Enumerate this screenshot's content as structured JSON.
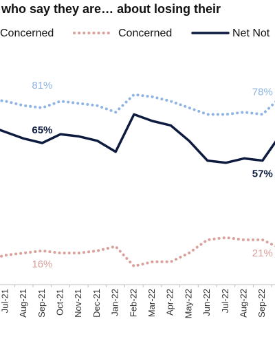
{
  "chart_data": {
    "type": "line",
    "title": "who say they are… about losing their",
    "categories": [
      null,
      "Jul-21",
      "Aug-21",
      "Sep-21",
      "Oct-21",
      "Nov-21",
      "Dec-21",
      "Jan-22",
      "Feb-22",
      "Mar-22",
      "Apr-22",
      "May-22",
      "Jun-22",
      "Jul-22",
      "Aug-22",
      "Sep-22",
      null
    ],
    "series": [
      {
        "name": "Concerned",
        "color": "#8fb4e3",
        "style": "dotted",
        "values": [
          85,
          84,
          82,
          81,
          84,
          83,
          82,
          79,
          87,
          86,
          84,
          81,
          78,
          78,
          79,
          78,
          86
        ],
        "value_labels": [
          null,
          null,
          null,
          "81%",
          null,
          null,
          null,
          null,
          null,
          null,
          null,
          null,
          null,
          null,
          null,
          "78%",
          null
        ]
      },
      {
        "name": "Concerned",
        "color": "#d9a09c",
        "style": "dotted",
        "values": [
          12,
          14,
          15,
          16,
          15,
          15,
          16,
          18,
          9,
          11,
          11,
          15,
          21,
          22,
          21,
          21,
          17
        ],
        "value_labels": [
          null,
          null,
          null,
          "16%",
          null,
          null,
          null,
          null,
          null,
          null,
          null,
          null,
          null,
          null,
          null,
          "21%",
          null
        ]
      },
      {
        "name": "Net Not",
        "color": "#0d1b3e",
        "style": "solid",
        "values": [
          73,
          70,
          67,
          65,
          69,
          68,
          66,
          61,
          78,
          75,
          73,
          66,
          57,
          56,
          58,
          57,
          69
        ],
        "value_labels": [
          null,
          null,
          null,
          "65%",
          null,
          null,
          null,
          null,
          null,
          null,
          null,
          null,
          null,
          null,
          null,
          "57%",
          null
        ]
      }
    ],
    "ylim": [
      0,
      100
    ]
  }
}
